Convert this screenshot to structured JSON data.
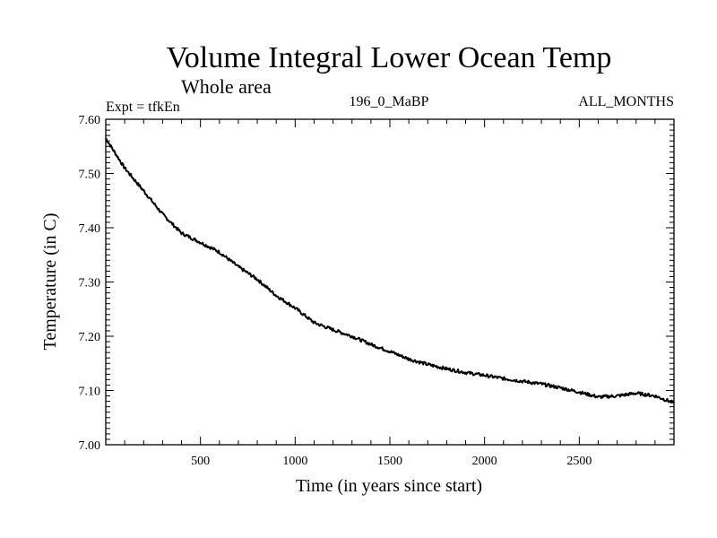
{
  "chart_data": {
    "type": "line",
    "title": "Volume Integral Lower Ocean Temp",
    "subtitle": "Whole area",
    "expt_label": "Expt = tfkEn",
    "run_label": "196_0_MaBP",
    "months_label": "ALL_MONTHS",
    "xlabel": "Time (in years since start)",
    "ylabel": "Temperature (in C)",
    "xlim": [
      0,
      3000
    ],
    "ylim": [
      7.0,
      7.6
    ],
    "x_ticks": [
      500,
      1000,
      1500,
      2000,
      2500
    ],
    "x_tick_labels": [
      "500",
      "1000",
      "1500",
      "2000",
      "2500"
    ],
    "y_ticks": [
      7.0,
      7.1,
      7.2,
      7.3,
      7.4,
      7.5,
      7.6
    ],
    "y_tick_labels": [
      "7.00",
      "7.10",
      "7.20",
      "7.30",
      "7.40",
      "7.50",
      "7.60"
    ],
    "grid": false,
    "series": [
      {
        "x": [
          0,
          100,
          200,
          300,
          400,
          500,
          600,
          700,
          800,
          900,
          1000,
          1100,
          1200,
          1300,
          1400,
          1500,
          1600,
          1700,
          1800,
          1900,
          2000,
          2100,
          2200,
          2300,
          2400,
          2500,
          2600,
          2700,
          2800,
          2900,
          3000
        ],
        "y": [
          7.565,
          7.51,
          7.468,
          7.425,
          7.39,
          7.373,
          7.355,
          7.328,
          7.305,
          7.275,
          7.252,
          7.225,
          7.212,
          7.2,
          7.185,
          7.172,
          7.158,
          7.148,
          7.14,
          7.133,
          7.128,
          7.122,
          7.117,
          7.112,
          7.105,
          7.097,
          7.088,
          7.09,
          7.095,
          7.09,
          7.077
        ]
      }
    ]
  }
}
